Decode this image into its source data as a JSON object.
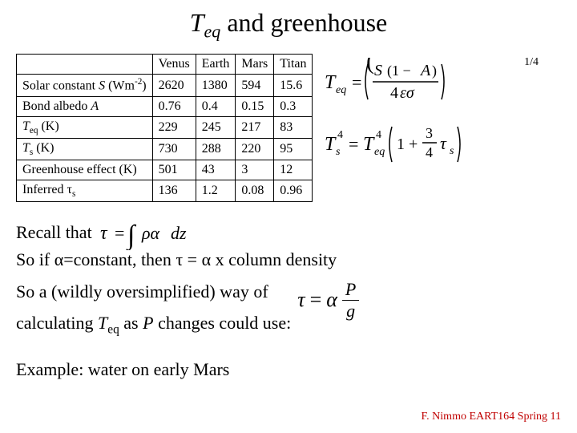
{
  "title_prefix": "T",
  "title_sub": "eq",
  "title_rest": " and greenhouse",
  "table": {
    "columns": [
      "",
      "Venus",
      "Earth",
      "Mars",
      "Titan"
    ],
    "rows": [
      {
        "label_html": "Solar constant <i>S</i> (Wm<sup>-2</sup>)",
        "cells": [
          "2620",
          "1380",
          "594",
          "15.6"
        ]
      },
      {
        "label_html": "Bond albedo <i>A</i>",
        "cells": [
          "0.76",
          "0.4",
          "0.15",
          "0.3"
        ]
      },
      {
        "label_html": "<i>T</i><sub>eq</sub> (K)",
        "cells": [
          "229",
          "245",
          "217",
          "83"
        ]
      },
      {
        "label_html": "<i>T</i><sub>s</sub> (K)",
        "cells": [
          "730",
          "288",
          "220",
          "95"
        ]
      },
      {
        "label_html": "Greenhouse effect (K)",
        "cells": [
          "501",
          "43",
          "3",
          "12"
        ]
      },
      {
        "label_html": "Inferred &tau;<sub>s</sub>",
        "cells": [
          "136",
          "1.2",
          "0.08",
          "0.96"
        ]
      }
    ]
  },
  "eq1_exp": "1/4",
  "recall": "Recall that",
  "line2_pre": "So if ",
  "line2_mid1": "=constant, then ",
  "line2_mid2": " = ",
  "line2_end": " x column density",
  "line3a": "So a (wildly oversimplified) way of",
  "line3b_pre": "calculating ",
  "line3b_post": " as ",
  "line3b_end": " changes could use:",
  "line4": "Example: water on early Mars",
  "tau_frac_top": "P",
  "tau_frac_bot": "g",
  "footer": "F. Nimmo EART164 Spring 11"
}
